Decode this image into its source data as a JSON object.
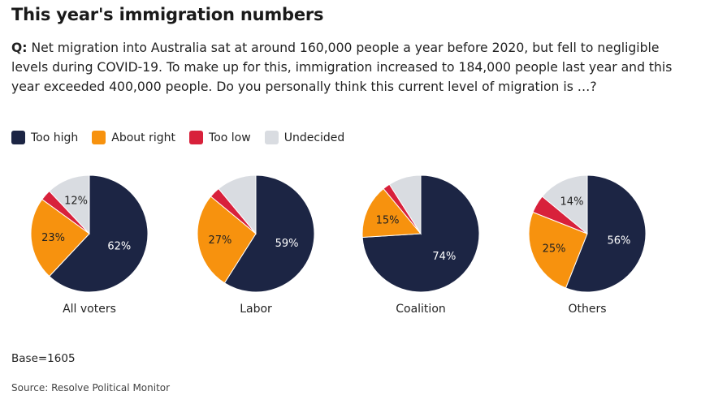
{
  "title": "This year's immigration numbers",
  "question": {
    "label": "Q:",
    "text": "Net migration into Australia sat at around 160,000 people a year before 2020, but fell to negligible levels during COVID-19. To make up for this, immigration increased to 184,000 people last year and this year exceeded 400,000 people. Do you personally think this current level of migration is …?"
  },
  "legend": [
    {
      "label": "Too high",
      "color": "#1c2544"
    },
    {
      "label": "About right",
      "color": "#f7920e"
    },
    {
      "label": "Too low",
      "color": "#d8213b"
    },
    {
      "label": "Undecided",
      "color": "#d9dce1"
    }
  ],
  "chart_data": [
    {
      "type": "pie",
      "title": "All voters",
      "series": [
        {
          "name": "Too high",
          "value": 62,
          "label": "62%"
        },
        {
          "name": "About right",
          "value": 23,
          "label": "23%"
        },
        {
          "name": "Too low",
          "value": 3,
          "label": ""
        },
        {
          "name": "Undecided",
          "value": 12,
          "label": "12%"
        }
      ]
    },
    {
      "type": "pie",
      "title": "Labor",
      "series": [
        {
          "name": "Too high",
          "value": 59,
          "label": "59%"
        },
        {
          "name": "About right",
          "value": 27,
          "label": "27%"
        },
        {
          "name": "Too low",
          "value": 3,
          "label": ""
        },
        {
          "name": "Undecided",
          "value": 11,
          "label": ""
        }
      ]
    },
    {
      "type": "pie",
      "title": "Coalition",
      "series": [
        {
          "name": "Too high",
          "value": 74,
          "label": "74%"
        },
        {
          "name": "About right",
          "value": 15,
          "label": "15%"
        },
        {
          "name": "Too low",
          "value": 2,
          "label": ""
        },
        {
          "name": "Undecided",
          "value": 9,
          "label": ""
        }
      ]
    },
    {
      "type": "pie",
      "title": "Others",
      "series": [
        {
          "name": "Too high",
          "value": 56,
          "label": "56%"
        },
        {
          "name": "About right",
          "value": 25,
          "label": "25%"
        },
        {
          "name": "Too low",
          "value": 5,
          "label": ""
        },
        {
          "name": "Undecided",
          "value": 14,
          "label": "14%"
        }
      ]
    }
  ],
  "base": "Base=1605",
  "source": "Source: Resolve Political Monitor"
}
